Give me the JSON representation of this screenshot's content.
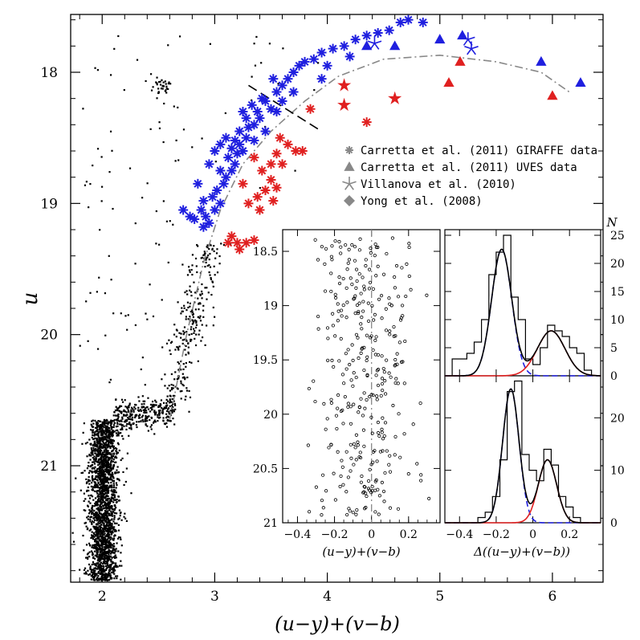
{
  "chart_data": [
    {
      "id": "main-cmd",
      "type": "scatter",
      "xlabel": "(u−y)+(v−b)",
      "ylabel": "u",
      "xlim": [
        1.72,
        6.45
      ],
      "ylim": [
        18.0,
        21.92
      ],
      "y_inverted": true,
      "xticks": [
        2,
        3,
        4,
        5,
        6
      ],
      "yticks": [
        18,
        19,
        20,
        21
      ],
      "legend": {
        "placement": "upper-right",
        "entries": [
          {
            "label": "Carretta et al. (2011) GIRAFFE data",
            "marker": "asterisk"
          },
          {
            "label": "Carretta et al. (2011) UVES data",
            "marker": "triangle"
          },
          {
            "label": "Villanova et al. (2010)",
            "marker": "star"
          },
          {
            "label": "Yong et al. (2008)",
            "marker": "diamond"
          }
        ]
      },
      "colors": {
        "first_gen": "#1f1fdf",
        "second_gen": "#e02020",
        "fiducial": "#888888",
        "field": "#000000",
        "legend_marker": "#888888"
      },
      "fiducial_line": {
        "x": [
          2.6,
          2.75,
          2.9,
          3.05,
          3.25,
          3.5,
          3.8,
          4.1,
          4.5,
          5.0,
          5.5,
          5.9,
          6.15
        ],
        "y": [
          20.65,
          20.0,
          19.45,
          19.05,
          18.7,
          18.45,
          18.22,
          18.03,
          17.9,
          17.87,
          17.92,
          18.0,
          18.15
        ]
      },
      "divider_line": {
        "x": [
          3.3,
          3.95
        ],
        "y": [
          18.1,
          18.45
        ]
      },
      "series": [
        {
          "group": "first_gen",
          "marker": "asterisk",
          "points": [
            [
              2.72,
              19.05
            ],
            [
              2.78,
              19.1
            ],
            [
              2.82,
              19.12
            ],
            [
              2.88,
              19.05
            ],
            [
              2.92,
              19.1
            ],
            [
              2.95,
              19.15
            ],
            [
              2.9,
              19.18
            ],
            [
              3.0,
              19.05
            ],
            [
              3.05,
              19.0
            ],
            [
              2.98,
              18.95
            ],
            [
              2.9,
              18.98
            ],
            [
              3.02,
              18.9
            ],
            [
              3.08,
              18.85
            ],
            [
              3.1,
              18.8
            ],
            [
              3.15,
              18.75
            ],
            [
              3.18,
              18.7
            ],
            [
              3.12,
              18.65
            ],
            [
              3.2,
              18.62
            ],
            [
              3.15,
              18.58
            ],
            [
              3.22,
              18.55
            ],
            [
              3.25,
              18.6
            ],
            [
              3.18,
              18.52
            ],
            [
              3.28,
              18.5
            ],
            [
              3.22,
              18.45
            ],
            [
              3.3,
              18.42
            ],
            [
              3.35,
              18.4
            ],
            [
              3.28,
              18.35
            ],
            [
              3.38,
              18.3
            ],
            [
              3.4,
              18.35
            ],
            [
              3.33,
              18.25
            ],
            [
              3.45,
              18.22
            ],
            [
              3.5,
              18.28
            ],
            [
              3.42,
              18.2
            ],
            [
              3.55,
              18.15
            ],
            [
              3.6,
              18.1
            ],
            [
              3.52,
              18.05
            ],
            [
              3.65,
              18.05
            ],
            [
              3.7,
              18.0
            ],
            [
              3.75,
              17.95
            ],
            [
              3.8,
              17.92
            ],
            [
              3.88,
              17.9
            ],
            [
              3.95,
              17.85
            ],
            [
              4.05,
              17.82
            ],
            [
              4.15,
              17.8
            ],
            [
              4.25,
              17.75
            ],
            [
              4.35,
              17.72
            ],
            [
              4.45,
              17.7
            ],
            [
              4.55,
              17.68
            ],
            [
              4.65,
              17.62
            ],
            [
              4.72,
              17.6
            ],
            [
              4.85,
              17.62
            ],
            [
              3.05,
              18.55
            ],
            [
              3.1,
              18.5
            ],
            [
              3.0,
              18.6
            ],
            [
              3.35,
              18.52
            ],
            [
              3.45,
              18.45
            ],
            [
              3.25,
              18.3
            ],
            [
              2.95,
              18.7
            ],
            [
              3.05,
              18.75
            ],
            [
              2.85,
              18.85
            ],
            [
              3.55,
              18.3
            ],
            [
              3.6,
              18.22
            ],
            [
              3.7,
              18.15
            ],
            [
              4.0,
              17.95
            ],
            [
              4.2,
              17.88
            ],
            [
              3.95,
              18.05
            ]
          ]
        },
        {
          "group": "first_gen",
          "marker": "triangle",
          "points": [
            [
              5.0,
              17.75
            ],
            [
              5.2,
              17.72
            ],
            [
              5.9,
              17.92
            ],
            [
              6.25,
              18.08
            ],
            [
              4.6,
              17.8
            ],
            [
              4.35,
              17.8
            ]
          ]
        },
        {
          "group": "first_gen",
          "marker": "star",
          "points": [
            [
              5.25,
              17.75
            ],
            [
              4.42,
              17.78
            ],
            [
              5.28,
              17.82
            ]
          ]
        },
        {
          "group": "second_gen",
          "marker": "asterisk",
          "points": [
            [
              3.35,
              18.65
            ],
            [
              3.42,
              18.75
            ],
            [
              3.5,
              18.82
            ],
            [
              3.45,
              18.9
            ],
            [
              3.38,
              18.95
            ],
            [
              3.3,
              19.0
            ],
            [
              3.25,
              18.85
            ],
            [
              3.4,
              19.05
            ],
            [
              3.52,
              18.98
            ],
            [
              3.55,
              18.88
            ],
            [
              3.6,
              18.7
            ],
            [
              3.72,
              18.6
            ],
            [
              3.78,
              18.6
            ],
            [
              3.65,
              18.55
            ],
            [
              3.58,
              18.5
            ],
            [
              3.85,
              18.28
            ],
            [
              4.35,
              18.38
            ],
            [
              3.15,
              19.25
            ],
            [
              3.2,
              19.3
            ],
            [
              3.22,
              19.35
            ],
            [
              3.28,
              19.3
            ],
            [
              3.35,
              19.28
            ],
            [
              3.12,
              19.3
            ],
            [
              3.5,
              18.7
            ],
            [
              3.55,
              18.62
            ]
          ]
        },
        {
          "group": "second_gen",
          "marker": "star",
          "points": [
            [
              4.15,
              18.1
            ],
            [
              4.15,
              18.25
            ],
            [
              4.6,
              18.2
            ]
          ]
        },
        {
          "group": "second_gen",
          "marker": "triangle",
          "points": [
            [
              5.18,
              17.92
            ],
            [
              5.08,
              18.08
            ],
            [
              6.0,
              18.18
            ]
          ]
        }
      ]
    },
    {
      "id": "rectified-cmd",
      "type": "scatter",
      "xlabel": "(u−y)+(v−b)",
      "ylabel": "",
      "xlim": [
        -0.48,
        0.37
      ],
      "ylim": [
        18.33,
        21.0
      ],
      "y_inverted": true,
      "xticks": [
        -0.4,
        -0.2,
        0,
        0.2
      ],
      "xtick_labels": [
        "−0.4",
        "−0.2",
        "0",
        "0.2"
      ],
      "yticks": [
        18.5,
        19,
        19.5,
        20,
        20.5,
        21
      ],
      "zero_line": 0
    },
    {
      "id": "histogram-upper",
      "type": "histogram",
      "xlim": [
        -0.48,
        0.37
      ],
      "ylim": [
        0,
        26
      ],
      "yticks": [
        0,
        5,
        10,
        15,
        20,
        25
      ],
      "ylabel": "N",
      "bin_edges": [
        -0.44,
        -0.4,
        -0.36,
        -0.32,
        -0.28,
        -0.24,
        -0.2,
        -0.16,
        -0.12,
        -0.08,
        -0.04,
        0.0,
        0.04,
        0.08,
        0.12,
        0.16,
        0.2,
        0.24,
        0.28,
        0.32
      ],
      "counts": [
        3,
        3,
        4,
        6,
        10,
        18,
        22,
        25,
        14,
        10,
        3,
        2,
        5,
        9,
        8,
        7,
        5,
        4,
        1
      ],
      "gaussians": [
        {
          "name": "blue",
          "amplitude": 22.5,
          "mean": -0.17,
          "sigma": 0.055,
          "color": "#1f1fdf",
          "dashed": true
        },
        {
          "name": "red",
          "amplitude": 8.0,
          "mean": 0.1,
          "sigma": 0.075,
          "color": "#e02020",
          "dashed": false
        }
      ]
    },
    {
      "id": "histogram-lower",
      "type": "histogram",
      "xlim": [
        -0.48,
        0.37
      ],
      "ylim": [
        0,
        28
      ],
      "yticks": [
        0,
        10,
        20
      ],
      "xticks": [
        -0.4,
        -0.2,
        0,
        0.2
      ],
      "xtick_labels": [
        "−0.4",
        "−0.2",
        "0",
        "0.2"
      ],
      "xlabel": "Δ((u−y)+(v−b))",
      "bin_edges": [
        -0.3,
        -0.26,
        -0.22,
        -0.18,
        -0.14,
        -0.1,
        -0.06,
        -0.02,
        0.02,
        0.06,
        0.1,
        0.14,
        0.18,
        0.22,
        0.26,
        0.3
      ],
      "counts": [
        1,
        2,
        5,
        12,
        25,
        27,
        13,
        10,
        8,
        14,
        11,
        5,
        3,
        1,
        0
      ],
      "gaussians": [
        {
          "name": "blue",
          "amplitude": 25.5,
          "mean": -0.12,
          "sigma": 0.045,
          "color": "#1f1fdf",
          "dashed": true
        },
        {
          "name": "red",
          "amplitude": 12.0,
          "mean": 0.08,
          "sigma": 0.05,
          "color": "#e02020",
          "dashed": false
        }
      ]
    }
  ]
}
